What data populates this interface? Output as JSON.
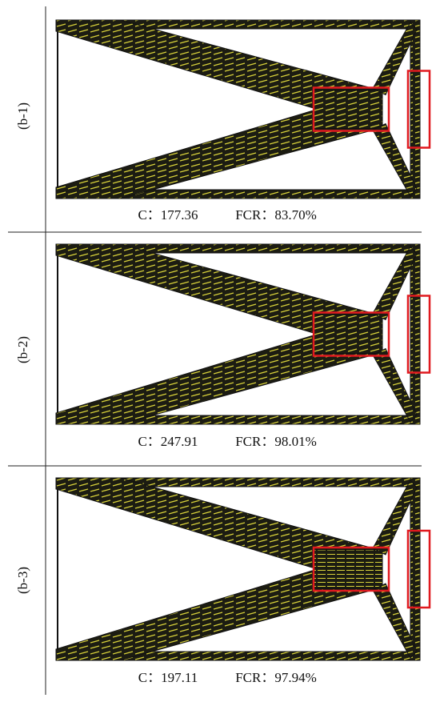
{
  "panels": [
    {
      "label": "(b-1)",
      "compliance": "C：177.36",
      "fcr": "FCR：83.70%"
    },
    {
      "label": "(b-2)",
      "compliance": "C：247.91",
      "fcr": "FCR：98.01%"
    },
    {
      "label": "(b-3)",
      "compliance": "C：197.11",
      "fcr": "FCR：97.94%"
    }
  ]
}
